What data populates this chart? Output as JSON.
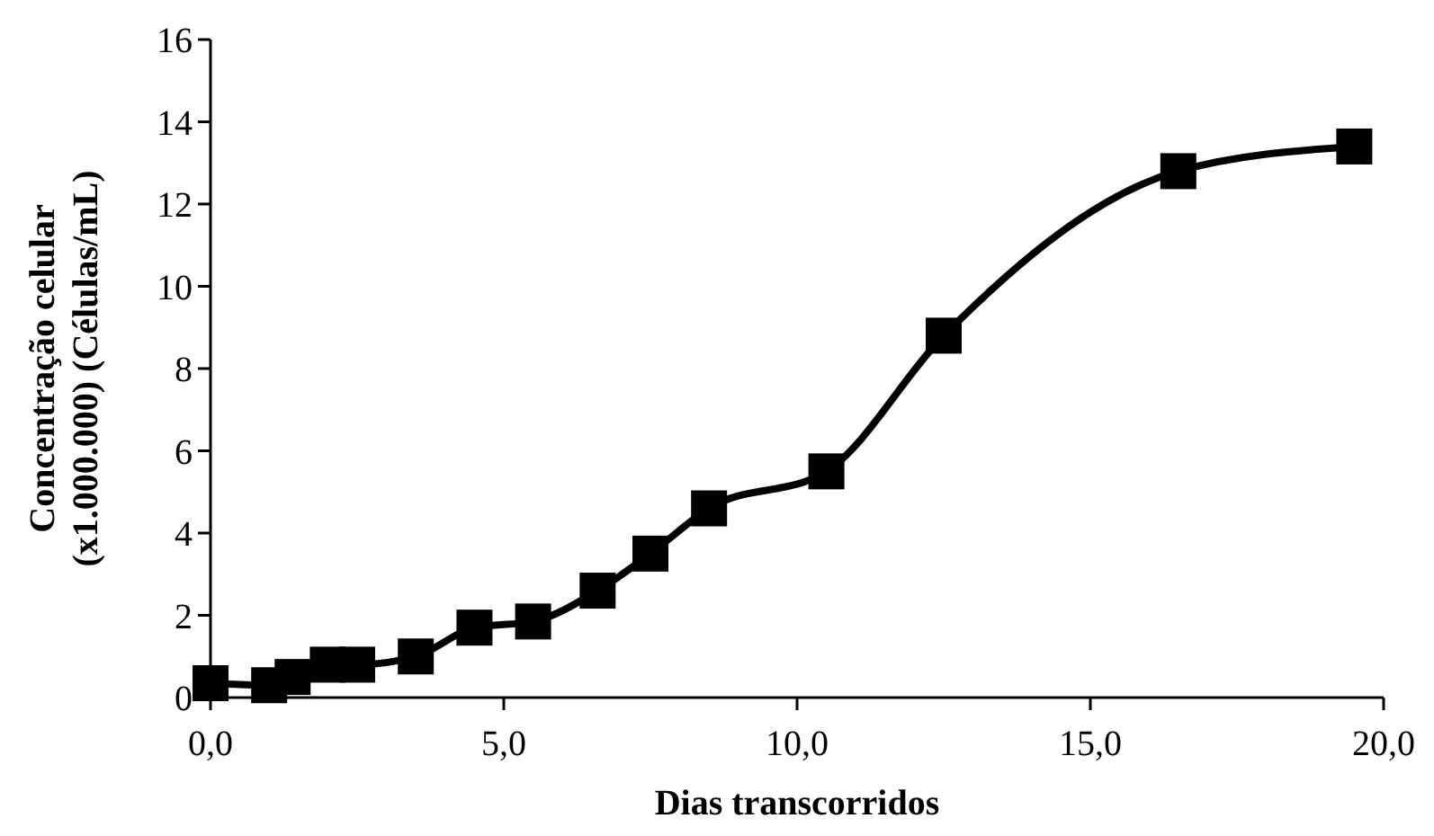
{
  "chart_data": {
    "type": "line",
    "xlabel": "Dias transcorridos",
    "ylabel": "Concentração celular (x1.000.000) (Células/mL)",
    "x": [
      0,
      1.0,
      1.4,
      2.0,
      2.5,
      3.5,
      4.5,
      5.5,
      6.6,
      7.5,
      8.5,
      10.5,
      12.5,
      16.5,
      19.5
    ],
    "series": [
      {
        "color": "#000000",
        "values": [
          0.35,
          0.3,
          0.5,
          0.8,
          0.8,
          1.0,
          1.7,
          1.85,
          2.6,
          3.5,
          4.6,
          5.5,
          8.8,
          12.8,
          13.4
        ]
      }
    ],
    "xlim": [
      0,
      20
    ],
    "xticks": [
      {
        "value": 0,
        "label": "0,0"
      },
      {
        "value": 5,
        "label": "5,0"
      },
      {
        "value": 10,
        "label": "10,0"
      },
      {
        "value": 15,
        "label": "15,0"
      },
      {
        "value": 20,
        "label": "20,0"
      }
    ],
    "ylim": [
      0,
      16
    ],
    "yticks": [
      0,
      2,
      4,
      6,
      8,
      10,
      12,
      14,
      16
    ],
    "marker": "square",
    "line_style": "solid"
  }
}
